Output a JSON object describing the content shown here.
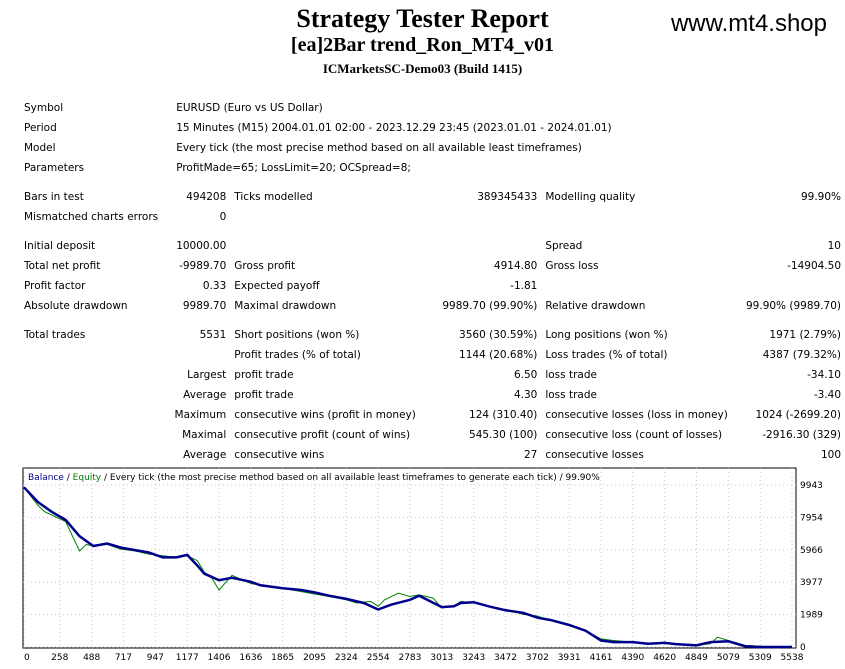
{
  "header": {
    "title": "Strategy Tester Report",
    "expert": "[ea]2Bar trend_Ron_MT4_v01",
    "server": "ICMarketsSC-Demo03 (Build 1415)",
    "watermark": "www.mt4.shop"
  },
  "info": {
    "symbol_label": "Symbol",
    "symbol": "EURUSD (Euro vs US Dollar)",
    "period_label": "Period",
    "period": "15 Minutes (M15) 2004.01.01 02:00 - 2023.12.29 23:45 (2023.01.01 - 2024.01.01)",
    "model_label": "Model",
    "model": "Every tick (the most precise method based on all available least timeframes)",
    "parameters_label": "Parameters",
    "parameters": "ProfitMade=65; LossLimit=20; OCSpread=8;"
  },
  "stats": {
    "bars_label": "Bars in test",
    "bars": "494208",
    "ticks_label": "Ticks modelled",
    "ticks": "389345433",
    "quality_label": "Modelling quality",
    "quality": "99.90%",
    "mismatch_label": "Mismatched charts errors",
    "mismatch": "0",
    "deposit_label": "Initial deposit",
    "deposit": "10000.00",
    "spread_label": "Spread",
    "spread": "10",
    "net_label": "Total net profit",
    "net": "-9989.70",
    "gross_profit_label": "Gross profit",
    "gross_profit": "4914.80",
    "gross_loss_label": "Gross loss",
    "gross_loss": "-14904.50",
    "pf_label": "Profit factor",
    "pf": "0.33",
    "payoff_label": "Expected payoff",
    "payoff": "-1.81",
    "abs_dd_label": "Absolute drawdown",
    "abs_dd": "9989.70",
    "max_dd_label": "Maximal drawdown",
    "max_dd": "9989.70 (99.90%)",
    "rel_dd_label": "Relative drawdown",
    "rel_dd": "99.90% (9989.70)",
    "trades_label": "Total trades",
    "trades": "5531",
    "short_label": "Short positions (won %)",
    "short": "3560 (30.59%)",
    "long_label": "Long positions (won %)",
    "long": "1971 (2.79%)",
    "profit_trades_label": "Profit trades (% of total)",
    "profit_trades": "1144 (20.68%)",
    "loss_trades_label": "Loss trades (% of total)",
    "loss_trades": "4387 (79.32%)",
    "largest_label": "Largest",
    "largest_profit_label": "profit trade",
    "largest_profit": "6.50",
    "largest_loss_label": "loss trade",
    "largest_loss": "-34.10",
    "average_label": "Average",
    "avg_profit_label": "profit trade",
    "avg_profit": "4.30",
    "avg_loss_label": "loss trade",
    "avg_loss": "-3.40",
    "maximum_label": "Maximum",
    "max_cons_wins_label": "consecutive wins (profit in money)",
    "max_cons_wins": "124 (310.40)",
    "max_cons_losses_label": "consecutive losses (loss in money)",
    "max_cons_losses": "1024 (-2699.20)",
    "maximal_label": "Maximal",
    "maximal_profit_label": "consecutive profit (count of wins)",
    "maximal_profit": "545.30 (100)",
    "maximal_loss_label": "consecutive loss (count of losses)",
    "maximal_loss": "-2916.30 (329)",
    "avg2_label": "Average",
    "avg_wins_label": "consecutive wins",
    "avg_wins": "27",
    "avg_losses_label": "consecutive losses",
    "avg_losses": "100"
  },
  "chart_data": {
    "type": "line",
    "legend_balance": "Balance",
    "legend_sep": " / ",
    "legend_equity": "Equity",
    "legend_rest": " / Every tick (the most precise method based on all available least timeframes to generate each tick) / 99.90%",
    "x_ticks": [
      "0",
      "258",
      "488",
      "717",
      "947",
      "1177",
      "1406",
      "1636",
      "1865",
      "2095",
      "2324",
      "2554",
      "2783",
      "3013",
      "3243",
      "3472",
      "3702",
      "3931",
      "4161",
      "4390",
      "4620",
      "4849",
      "5079",
      "5309",
      "5538"
    ],
    "y_ticks": [
      "9943",
      "7954",
      "5966",
      "3977",
      "1989",
      "0"
    ],
    "xlim": [
      0,
      5538
    ],
    "ylim": [
      0,
      9943
    ],
    "colors": {
      "balance": "#00008b",
      "equity": "#008000",
      "grid": "#c8c8c8"
    },
    "series": [
      {
        "name": "Balance",
        "x": [
          0,
          100,
          200,
          300,
          400,
          500,
          600,
          700,
          800,
          900,
          1000,
          1100,
          1177,
          1250,
          1300,
          1406,
          1500,
          1636,
          1700,
          1865,
          2000,
          2095,
          2200,
          2324,
          2450,
          2554,
          2650,
          2783,
          2850,
          3013,
          3100,
          3150,
          3243,
          3350,
          3472,
          3600,
          3702,
          3800,
          3931,
          4050,
          4161,
          4250,
          4390,
          4500,
          4620,
          4700,
          4849,
          4950,
          5079,
          5200,
          5309,
          5400,
          5500,
          5538
        ],
        "y": [
          9800,
          8900,
          8300,
          7800,
          6800,
          6200,
          6350,
          6100,
          5950,
          5800,
          5500,
          5500,
          5650,
          5000,
          4500,
          4100,
          4250,
          4000,
          3800,
          3600,
          3500,
          3350,
          3150,
          2950,
          2700,
          2300,
          2600,
          2900,
          3150,
          2450,
          2500,
          2700,
          2750,
          2500,
          2250,
          2100,
          1800,
          1650,
          1350,
          1000,
          400,
          300,
          300,
          200,
          250,
          180,
          100,
          300,
          350,
          50,
          0,
          0,
          0,
          0
        ]
      },
      {
        "name": "Equity",
        "x": [
          0,
          100,
          150,
          200,
          300,
          350,
          400,
          450,
          500,
          600,
          700,
          800,
          900,
          1000,
          1100,
          1177,
          1250,
          1300,
          1350,
          1406,
          1500,
          1636,
          1700,
          1865,
          2000,
          2095,
          2200,
          2324,
          2400,
          2500,
          2554,
          2600,
          2700,
          2783,
          2850,
          2950,
          3013,
          3100,
          3150,
          3243,
          3350,
          3472,
          3600,
          3702,
          3800,
          3931,
          4050,
          4161,
          4250,
          4390,
          4500,
          4620,
          4700,
          4849,
          4950,
          5000,
          5079,
          5200,
          5309,
          5400,
          5500,
          5538
        ],
        "y": [
          9800,
          8700,
          8300,
          8100,
          7700,
          6800,
          5900,
          6300,
          6200,
          6300,
          6000,
          5900,
          5700,
          5600,
          5500,
          5600,
          5300,
          4600,
          4300,
          3500,
          4400,
          3900,
          3800,
          3600,
          3400,
          3250,
          3100,
          2900,
          2700,
          2800,
          2500,
          2900,
          3300,
          3100,
          3200,
          3000,
          2400,
          2500,
          2800,
          2700,
          2500,
          2300,
          2000,
          1900,
          1600,
          1400,
          1000,
          500,
          400,
          300,
          200,
          300,
          200,
          100,
          200,
          600,
          400,
          100,
          50,
          0,
          0,
          0
        ]
      }
    ]
  }
}
